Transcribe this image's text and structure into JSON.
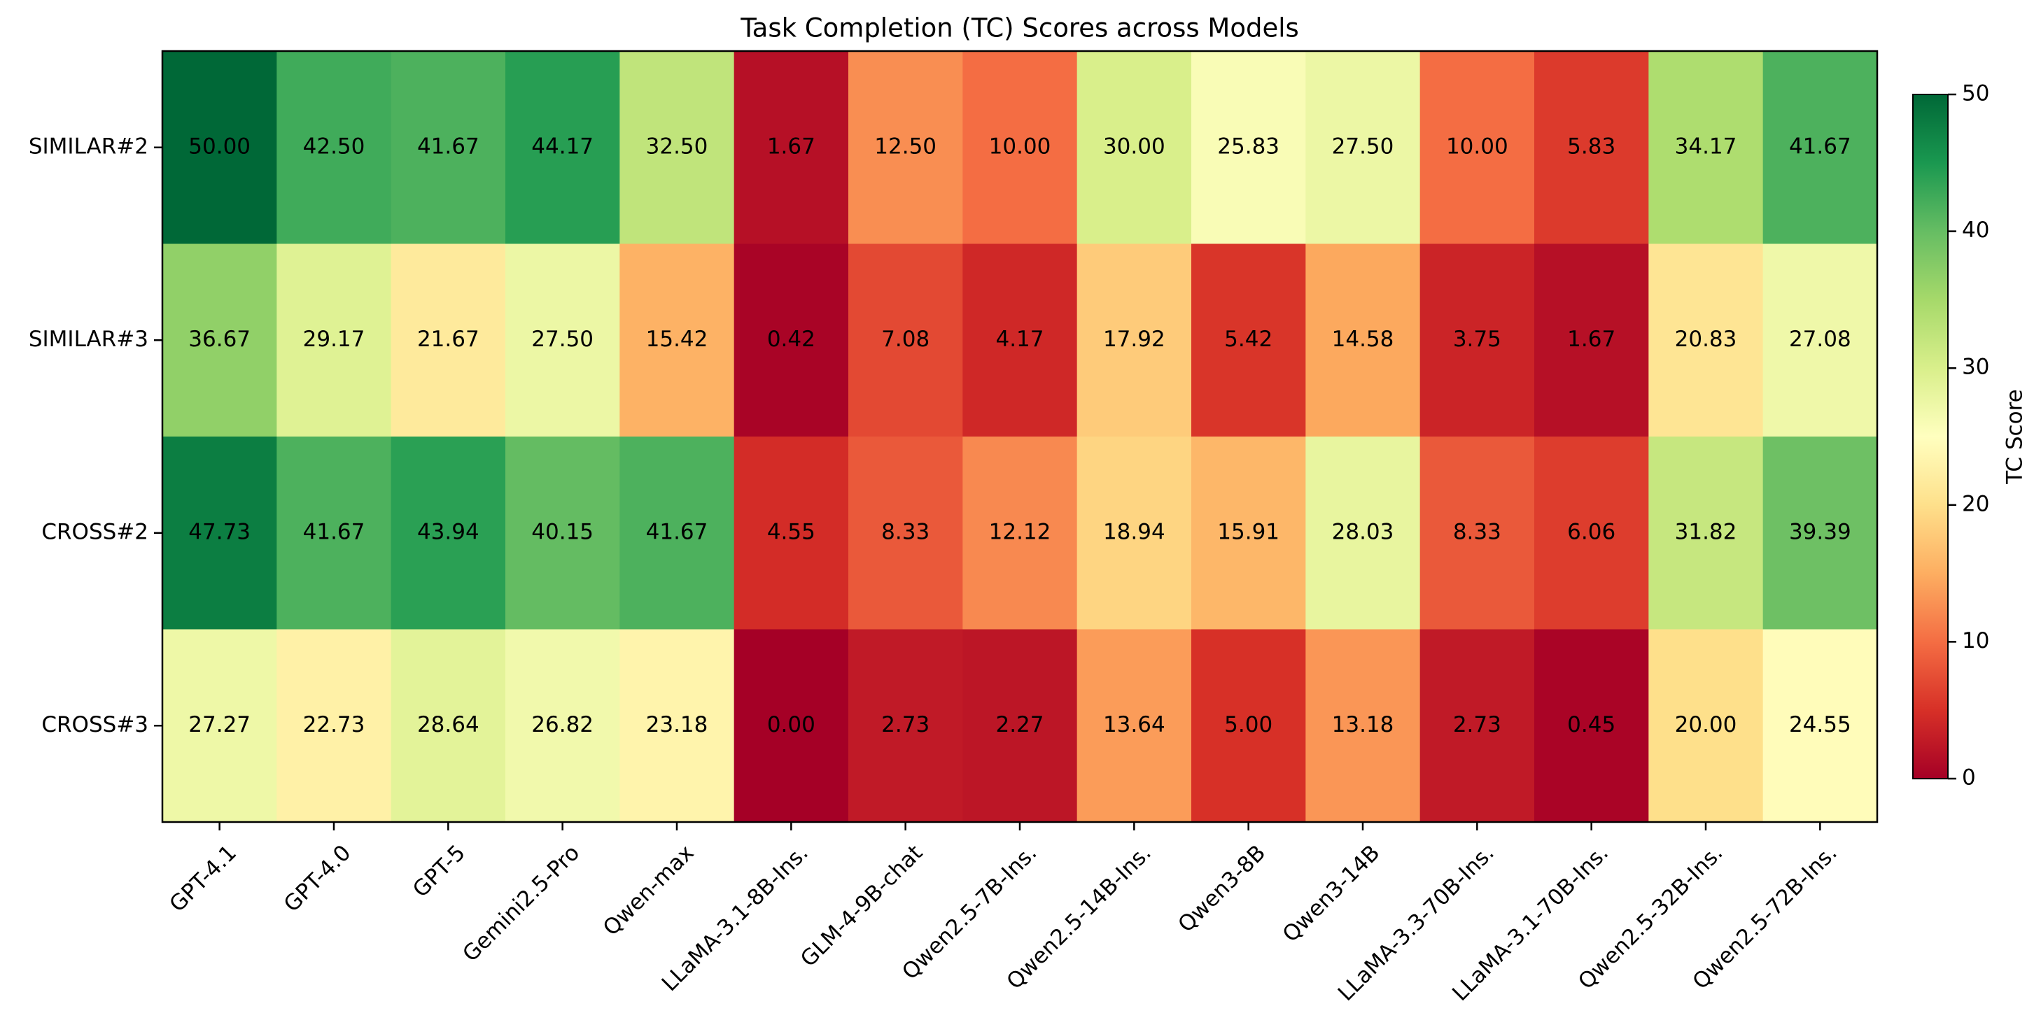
{
  "chart_data": {
    "type": "heatmap",
    "title": "Task Completion (TC) Scores across Models",
    "rows": [
      "SIMILAR#2",
      "SIMILAR#3",
      "CROSS#2",
      "CROSS#3"
    ],
    "columns": [
      "GPT-4.1",
      "GPT-4.0",
      "GPT-5",
      "Gemini2.5-Pro",
      "Qwen-max",
      "LLaMA-3.1-8B-Ins.",
      "GLM-4-9B-chat",
      "Qwen2.5-7B-Ins.",
      "Qwen2.5-14B-Ins.",
      "Qwen3-8B",
      "Qwen3-14B",
      "LLaMA-3.3-70B-Ins.",
      "LLaMA-3.1-70B-Ins.",
      "Qwen2.5-32B-Ins.",
      "Qwen2.5-72B-Ins."
    ],
    "values": [
      [
        "50.00",
        "42.50",
        "41.67",
        "44.17",
        "32.50",
        "1.67",
        "12.50",
        "10.00",
        "30.00",
        "25.83",
        "27.50",
        "10.00",
        "5.83",
        "34.17",
        "41.67"
      ],
      [
        "36.67",
        "29.17",
        "21.67",
        "27.50",
        "15.42",
        "0.42",
        "7.08",
        "4.17",
        "17.92",
        "5.42",
        "14.58",
        "3.75",
        "1.67",
        "20.83",
        "27.08"
      ],
      [
        "47.73",
        "41.67",
        "43.94",
        "40.15",
        "41.67",
        "4.55",
        "8.33",
        "12.12",
        "18.94",
        "15.91",
        "28.03",
        "8.33",
        "6.06",
        "31.82",
        "39.39"
      ],
      [
        "27.27",
        "22.73",
        "28.64",
        "26.82",
        "23.18",
        "0.00",
        "2.73",
        "2.27",
        "13.64",
        "5.00",
        "13.18",
        "2.73",
        "0.45",
        "20.00",
        "24.55"
      ]
    ],
    "colormap": "RdYlGn",
    "vmin": 0,
    "vmax": 50,
    "colorbar": {
      "label": "TC Score",
      "ticks": [
        "0",
        "10",
        "20",
        "30",
        "40",
        "50"
      ]
    }
  }
}
